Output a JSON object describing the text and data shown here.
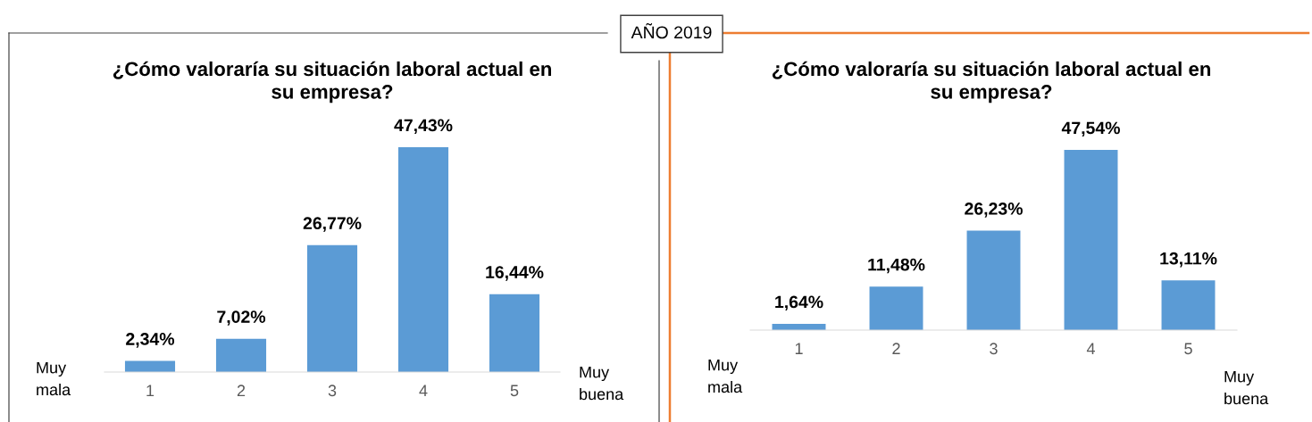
{
  "chart_data": [
    {
      "type": "bar",
      "title": "¿Cómo valoraría su situación laboral actual en su empresa?",
      "categories": [
        "1",
        "2",
        "3",
        "4",
        "5"
      ],
      "values": [
        2.34,
        7.02,
        26.77,
        47.43,
        16.44
      ],
      "value_labels": [
        "2,34%",
        "7,02%",
        "26,77%",
        "47,43%",
        "16,44%"
      ],
      "color": "#5b9bd5",
      "tick_labels": "x",
      "annotations": [
        "Muy mala",
        "Muy buena",
        "AÑO 2019"
      ]
    },
    {
      "type": "bar",
      "title": "¿Cómo valoraría su situación laboral actual en su empresa?",
      "categories": [
        "1",
        "2",
        "3",
        "4",
        "5"
      ],
      "values": [
        1.64,
        11.48,
        26.23,
        47.54,
        13.11
      ],
      "value_labels": [
        "1,64%",
        "11,48%",
        "26,23%",
        "47,54%",
        "13,11%"
      ],
      "color": "#5b9bd5",
      "tick_labels": "x",
      "annotations": [
        "Muy mala",
        "Muy buena"
      ]
    }
  ]
}
